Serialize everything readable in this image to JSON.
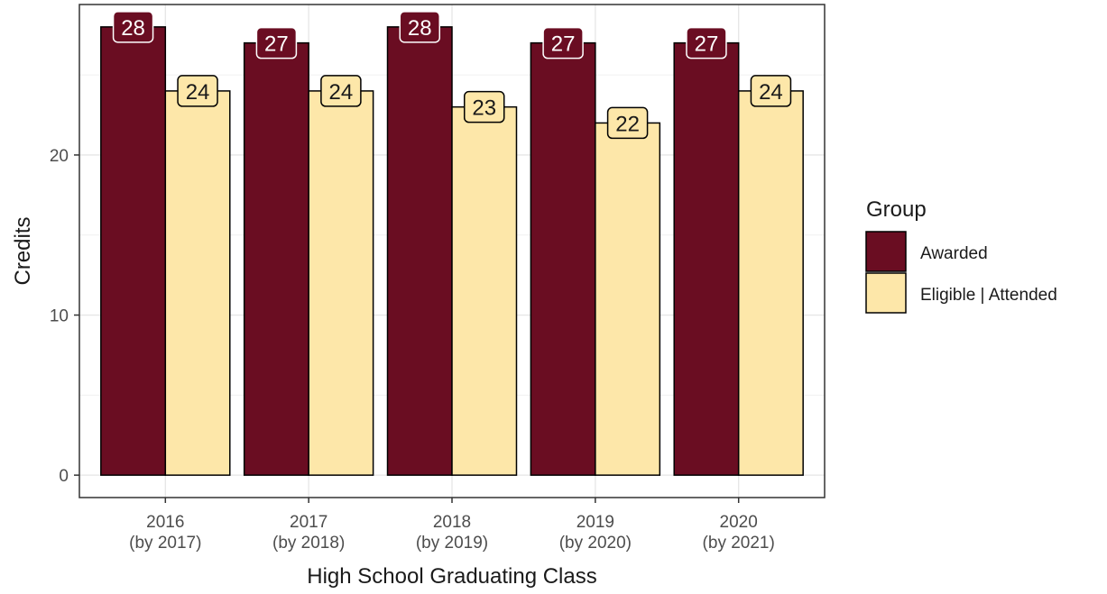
{
  "chart_data": {
    "type": "bar",
    "xlabel": "High School Graduating Class",
    "ylabel": "Credits",
    "categories": [
      [
        "2016",
        "(by 2017)"
      ],
      [
        "2017",
        "(by 2018)"
      ],
      [
        "2018",
        "(by 2019)"
      ],
      [
        "2019",
        "(by 2020)"
      ],
      [
        "2020",
        "(by 2021)"
      ]
    ],
    "series": [
      {
        "name": "Awarded",
        "values": [
          28,
          27,
          28,
          27,
          27
        ]
      },
      {
        "name": "Eligible | Attended",
        "values": [
          24,
          24,
          23,
          22,
          24
        ]
      }
    ],
    "y_ticks": [
      0,
      10,
      20
    ],
    "ylim": [
      -1.4,
      29.4
    ],
    "grid": true,
    "legend": {
      "title": "Group",
      "placement": "right"
    },
    "colors": {
      "Awarded": "#6a0d22",
      "Eligible | Attended": "#fde7a9",
      "outline": "#000000"
    }
  }
}
